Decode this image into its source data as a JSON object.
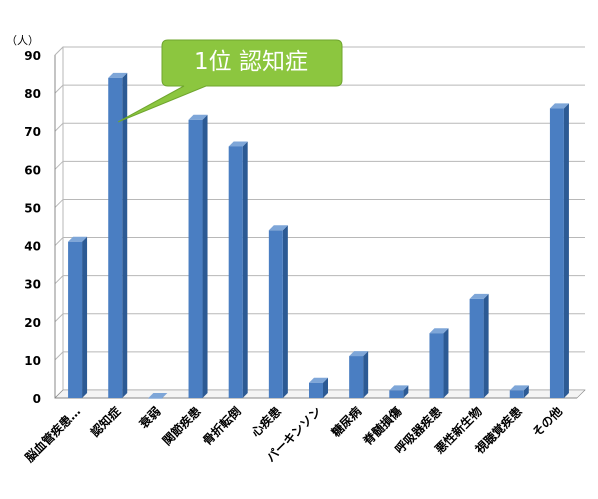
{
  "title": "",
  "unit_label": "（人）",
  "callout": {
    "text": "1位 認知症",
    "color": "#8cc63f"
  },
  "colors": {
    "bar_front": "#4a7ec2",
    "bar_side": "#2c5a94",
    "bar_top": "#7ea6d8",
    "axis": "#888888"
  },
  "chart_data": {
    "type": "bar",
    "title": "",
    "xlabel": "",
    "ylabel": "（人）",
    "ylim": [
      0,
      90
    ],
    "yticks": [
      0,
      10,
      20,
      30,
      40,
      50,
      60,
      70,
      80,
      90
    ],
    "grid": true,
    "categories": [
      "脳血管疾患…",
      "認知症",
      "衰弱",
      "関節疾患",
      "骨折転倒",
      "心疾患",
      "パーキンソン",
      "糖尿病",
      "脊髄損傷",
      "呼吸器疾患",
      "悪性新生物",
      "視聴覚疾患",
      "その他"
    ],
    "values": [
      41,
      84,
      0,
      73,
      66,
      44,
      4,
      11,
      2,
      17,
      26,
      2,
      76
    ]
  }
}
